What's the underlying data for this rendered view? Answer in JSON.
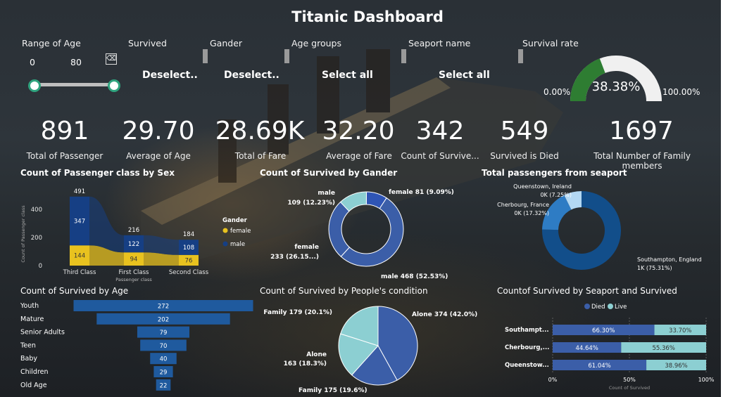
{
  "title": "Titanic Dashboard",
  "slicers": {
    "age": {
      "label": "Range of Age",
      "min": "0",
      "max": "80"
    },
    "survived": {
      "label": "Survived",
      "value": "Deselect.."
    },
    "gender": {
      "label": "Gander",
      "value": "Deselect.."
    },
    "age_groups": {
      "label": "Age groups",
      "value": "Select all"
    },
    "seaport": {
      "label": "Seaport name",
      "value": "Select all"
    }
  },
  "gauge": {
    "label": "Survival rate",
    "value": "38.38%",
    "min": "0.00%",
    "max": "100.00%",
    "fraction": 0.3838,
    "colors": {
      "fill": "#2e7d32",
      "track": "#f0f0f0"
    }
  },
  "kpis": [
    {
      "value": "891",
      "label": "Total of Passenger"
    },
    {
      "value": "29.70",
      "label": "Average of Age"
    },
    {
      "value": "28.69K",
      "label": "Total of Fare"
    },
    {
      "value": "32.20",
      "label": "Average of Fare"
    },
    {
      "value": "342",
      "label": "Count of Survive..."
    },
    {
      "value": "549",
      "label": "Survived is Died"
    },
    {
      "value": "1697",
      "label": "Total Number of Family members"
    }
  ],
  "charts": {
    "class_sex": {
      "title": "Count of Passenger class by Sex",
      "ylabel": "Count of Passenger class",
      "xlabel": "Passenger class",
      "legend_title": "Gander",
      "legend": [
        "female",
        "male"
      ]
    },
    "survived_gender": {
      "title": "Count of Survived by Gander"
    },
    "seaport_total": {
      "title": "Total passengers from seaport"
    },
    "survived_age": {
      "title": "Count of Survived by Age"
    },
    "condition": {
      "title": "Count of Survived by People's condition"
    },
    "seaport_survived": {
      "title": "Countof Survived by Seaport and Survived",
      "legend": [
        "Died",
        "Live"
      ],
      "xlabel": "Count of Survived"
    }
  },
  "chart_data": [
    {
      "type": "bar",
      "title": "Count of Passenger class by Sex",
      "categories": [
        "Third Class",
        "First Class",
        "Second Class"
      ],
      "totals": [
        491,
        216,
        184
      ],
      "series": [
        {
          "name": "female",
          "values": [
            144,
            94,
            76
          ],
          "labels": [
            "144",
            "94",
            "76"
          ]
        },
        {
          "name": "male",
          "values": [
            347,
            122,
            108
          ],
          "labels": [
            "347",
            "122",
            "108"
          ]
        }
      ],
      "total_labels": [
        "491",
        "216",
        "184"
      ],
      "ylim": [
        0,
        500
      ],
      "yticks": [
        "0",
        "200",
        "400"
      ],
      "colors": {
        "female": "#e8c21f",
        "male": "#163f84"
      }
    },
    {
      "type": "pie",
      "title": "Count of Survived by Gander",
      "donut": true,
      "slices": [
        {
          "label": "female 81 (9.09%)",
          "value": 81,
          "color": "#2f55b5"
        },
        {
          "label": "male 468 (52.53%)",
          "value": 468,
          "color": "#3b5ea8"
        },
        {
          "label": "female 233 (26.15...)",
          "value": 233,
          "color": "#3b5ea8"
        },
        {
          "label": "male 109 (12.23%)",
          "value": 109,
          "color": "#8ccfd2"
        }
      ]
    },
    {
      "type": "pie",
      "title": "Total passengers from seaport",
      "donut": true,
      "slices": [
        {
          "label": "Southampton, England 1K (75.31%)",
          "value": 75.31,
          "color": "#124e8a"
        },
        {
          "label": "Cherbourg, France 0K (17.32%)",
          "value": 17.32,
          "color": "#2e7cc4"
        },
        {
          "label": "Queenstown, Ireland 0K (7.25%)",
          "value": 7.25,
          "color": "#b3d8f3"
        }
      ]
    },
    {
      "type": "bar",
      "title": "Count of Survived by Age",
      "categories": [
        "Youth",
        "Mature",
        "Senior Adults",
        "Teen",
        "Baby",
        "Children",
        "Old Age"
      ],
      "values": [
        272,
        202,
        79,
        70,
        40,
        29,
        22
      ],
      "labels": [
        "272",
        "202",
        "79",
        "70",
        "40",
        "29",
        "22"
      ],
      "color": "#1f5a9e"
    },
    {
      "type": "pie",
      "title": "Count of Survived by People's condition",
      "slices": [
        {
          "label": "Alone 374 (42.0%)",
          "value": 374,
          "color": "#3b5ea8"
        },
        {
          "label": "Family 175 (19.6%)",
          "value": 175,
          "color": "#3b5ea8"
        },
        {
          "label": "Alone 163 (18.3%)",
          "value": 163,
          "color": "#8ccfd2"
        },
        {
          "label": "Family 179 (20.1%)",
          "value": 179,
          "color": "#8ccfd2"
        }
      ]
    },
    {
      "type": "bar",
      "stacked_percent": true,
      "title": "Countof Survived by Seaport and Survived",
      "categories": [
        "Southampt...",
        "Cherbourg,...",
        "Queenstow..."
      ],
      "series": [
        {
          "name": "Died",
          "values": [
            66.3,
            44.64,
            61.04
          ],
          "labels": [
            "66.30%",
            "44.64%",
            "61.04%"
          ],
          "color": "#3b5ea8"
        },
        {
          "name": "Live",
          "values": [
            33.7,
            55.36,
            38.96
          ],
          "labels": [
            "33.70%",
            "55.36%",
            "38.96%"
          ],
          "color": "#8ccfd2"
        }
      ],
      "xticks": [
        "0%",
        "50%",
        "100%"
      ]
    }
  ]
}
